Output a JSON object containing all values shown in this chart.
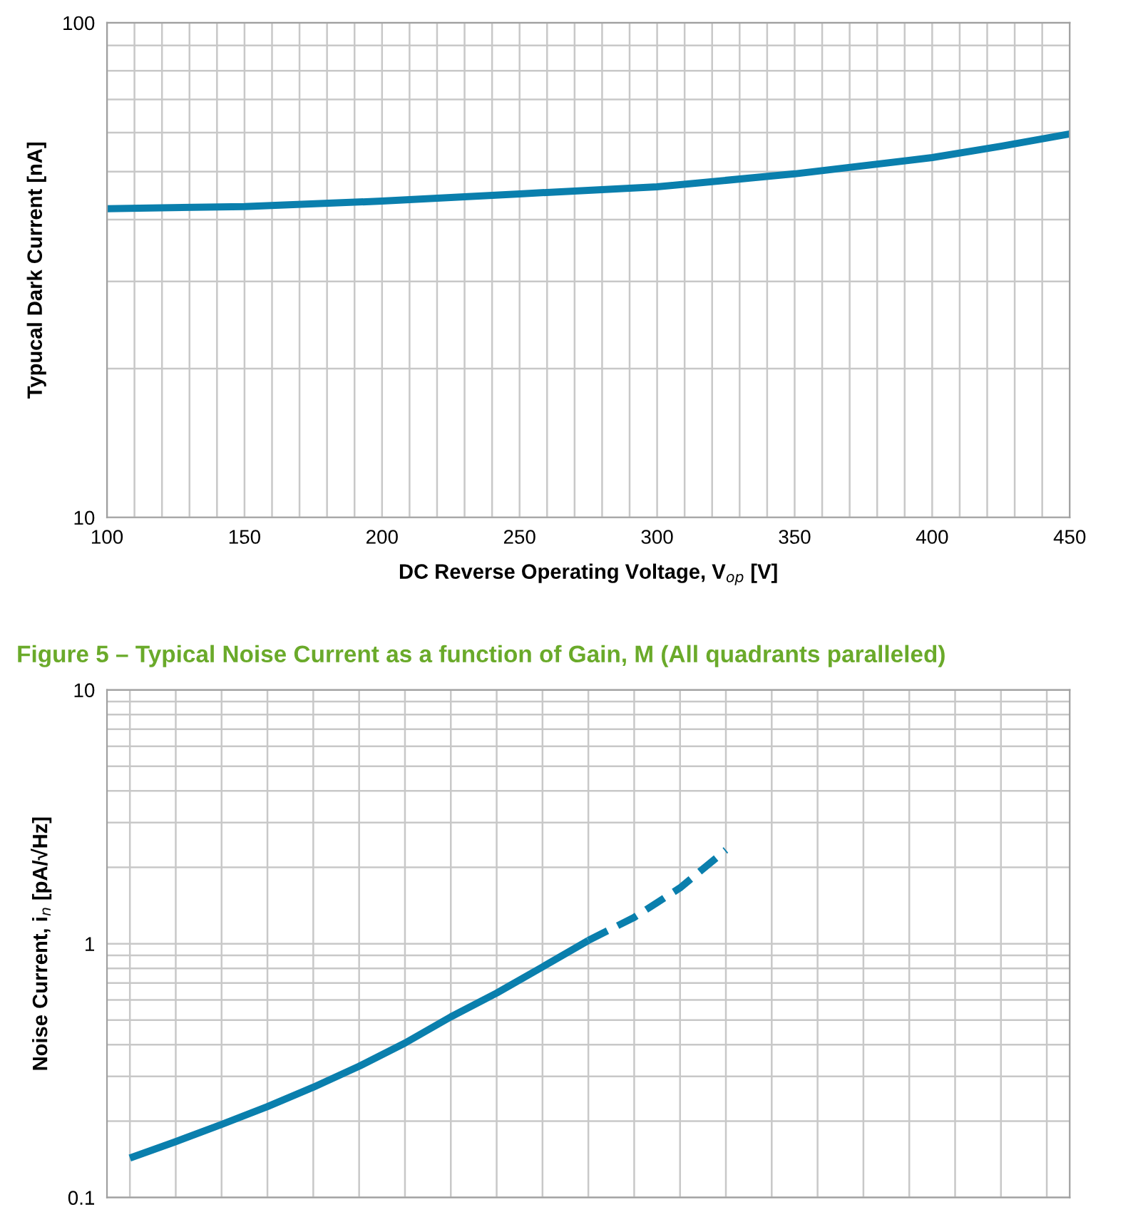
{
  "chart_data": [
    {
      "type": "line",
      "xlabel": "DC Reverse Operating Voltage, V$_{op}$ [V]",
      "ylabel": "Typucal Dark Current [nA]",
      "x": [
        100,
        150,
        200,
        250,
        300,
        350,
        400,
        425,
        450
      ],
      "series": [
        {
          "color": "#0a7fad",
          "values": [
            42.1,
            42.5,
            43.6,
            45.1,
            46.6,
            49.5,
            53.4,
            56.3,
            59.6
          ]
        }
      ],
      "log": "y",
      "xlim": [
        100,
        450
      ],
      "ylim": [
        10,
        100
      ],
      "xticks": [
        100,
        {
          "value": 110,
          "label": null
        },
        {
          "value": 120,
          "label": null
        },
        {
          "value": 130,
          "label": null
        },
        {
          "value": 140,
          "label": null
        },
        150,
        {
          "value": 160,
          "label": null
        },
        {
          "value": 170,
          "label": null
        },
        {
          "value": 180,
          "label": null
        },
        {
          "value": 190,
          "label": null
        },
        200,
        {
          "value": 210,
          "label": null
        },
        {
          "value": 220,
          "label": null
        },
        {
          "value": 230,
          "label": null
        },
        {
          "value": 240,
          "label": null
        },
        250,
        {
          "value": 260,
          "label": null
        },
        {
          "value": 270,
          "label": null
        },
        {
          "value": 280,
          "label": null
        },
        {
          "value": 290,
          "label": null
        },
        300,
        {
          "value": 310,
          "label": null
        },
        {
          "value": 320,
          "label": null
        },
        {
          "value": 330,
          "label": null
        },
        {
          "value": 340,
          "label": null
        },
        350,
        {
          "value": 360,
          "label": null
        },
        {
          "value": 370,
          "label": null
        },
        {
          "value": 380,
          "label": null
        },
        {
          "value": 390,
          "label": null
        },
        400,
        {
          "value": 410,
          "label": null
        },
        {
          "value": 420,
          "label": null
        },
        {
          "value": 430,
          "label": null
        },
        {
          "value": 440,
          "label": null
        },
        450
      ],
      "yticks": [
        10,
        {
          "value": 20,
          "label": null
        },
        {
          "value": 30,
          "label": null
        },
        {
          "value": 40,
          "label": null
        },
        {
          "value": 50,
          "label": null
        },
        {
          "value": 60,
          "label": null
        },
        {
          "value": 70,
          "label": null
        },
        {
          "value": 80,
          "label": null
        },
        {
          "value": 90,
          "label": null
        },
        100
      ],
      "grid": true,
      "line_style": "solid"
    },
    {
      "type": "line",
      "title": "Figure 5 – Typical Noise Current as a function of Gain, M (All quadrants paralleled)",
      "ylabel": "Noise Current, i$_{n}$ [pA/√Hz]",
      "categories": [
        null,
        null,
        null,
        null,
        null,
        null,
        null,
        null,
        null,
        null,
        null,
        null,
        null,
        null,
        null,
        null,
        null,
        null,
        null,
        null,
        null
      ],
      "series": [
        {
          "color": "#0a7fad",
          "line_style": "solid",
          "values": [
            0.143,
            0.166,
            0.194,
            0.228,
            0.272,
            0.329,
            0.406,
            0.515,
            0.639,
            0.81,
            1.03,
            null,
            null,
            null,
            null,
            null,
            null,
            null,
            null,
            null,
            null
          ]
        },
        {
          "color": "#0a7fad",
          "line_style": "dashed",
          "values": [
            null,
            null,
            null,
            null,
            null,
            null,
            null,
            null,
            null,
            null,
            1.03,
            1.27,
            1.66,
            2.34,
            null,
            null,
            null,
            null,
            null,
            null,
            null
          ]
        }
      ],
      "log": "y",
      "ylim": [
        0.1,
        10
      ],
      "yticks": [
        0.1,
        {
          "value": 0.2,
          "label": null
        },
        {
          "value": 0.3,
          "label": null
        },
        {
          "value": 0.4,
          "label": null
        },
        {
          "value": 0.5,
          "label": null
        },
        {
          "value": 0.6,
          "label": null
        },
        {
          "value": 0.7,
          "label": null
        },
        {
          "value": 0.8,
          "label": null
        },
        {
          "value": 0.9,
          "label": null
        },
        1,
        {
          "value": 2,
          "label": null
        },
        {
          "value": 3,
          "label": null
        },
        {
          "value": 4,
          "label": null
        },
        {
          "value": 5,
          "label": null
        },
        {
          "value": 6,
          "label": null
        },
        {
          "value": 7,
          "label": null
        },
        {
          "value": 8,
          "label": null
        },
        {
          "value": 9,
          "label": null
        },
        10
      ],
      "grid": true
    }
  ]
}
